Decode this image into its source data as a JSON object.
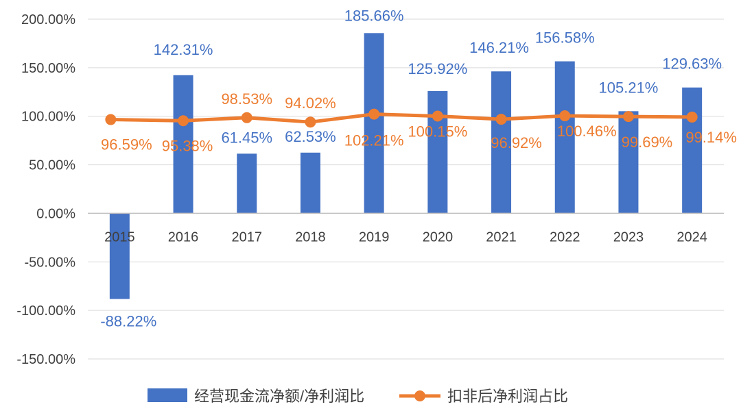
{
  "colors": {
    "bar": "#4472C4",
    "line": "#ED7D31",
    "grid": "#D9D9D9",
    "axis": "#BFBFBF",
    "text": "#404040"
  },
  "chart_data": {
    "type": "bar",
    "title": "",
    "xlabel": "",
    "ylabel": "",
    "ylim": [
      -150,
      200
    ],
    "yticks": [
      200,
      150,
      100,
      50,
      0,
      -50,
      -100,
      -150
    ],
    "ytick_labels": [
      "200.00%",
      "150.00%",
      "100.00%",
      "50.00%",
      "0.00%",
      "-50.00%",
      "-100.00%",
      "-150.00%"
    ],
    "categories": [
      "2015",
      "2016",
      "2017",
      "2018",
      "2019",
      "2020",
      "2021",
      "2022",
      "2023",
      "2024"
    ],
    "grid": true,
    "legend_position": "bottom",
    "series": [
      {
        "name": "经营现金流净额/净利润比",
        "kind": "bar",
        "values": [
          -88.22,
          142.31,
          61.45,
          62.53,
          185.66,
          125.92,
          146.21,
          156.58,
          105.21,
          129.63
        ],
        "labels": [
          "-88.22%",
          "142.31%",
          "61.45%",
          "62.53%",
          "185.66%",
          "125.92%",
          "146.21%",
          "156.58%",
          "105.21%",
          "129.63%"
        ]
      },
      {
        "name": "扣非后净利润占比",
        "kind": "line",
        "values": [
          96.59,
          95.38,
          98.53,
          94.02,
          102.21,
          100.15,
          96.92,
          100.46,
          99.69,
          99.14
        ],
        "labels": [
          "96.59%",
          "95.38%",
          "98.53%",
          "94.02%",
          "102.21%",
          "100.15%",
          "96.92%",
          "100.46%",
          "99.69%",
          "99.14%"
        ]
      }
    ]
  }
}
